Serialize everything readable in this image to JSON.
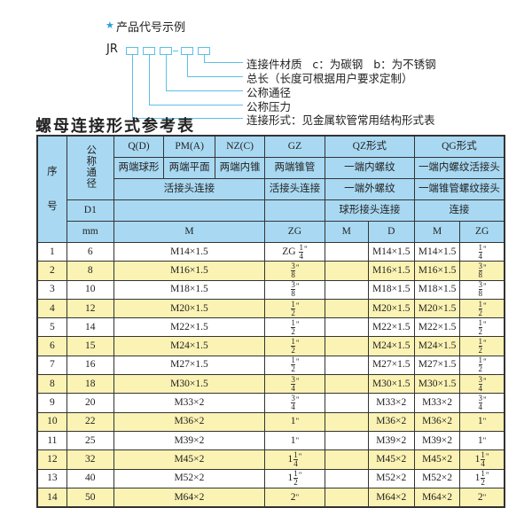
{
  "diagram": {
    "title": "产品代号示例",
    "star_icon": "star",
    "code": "JR",
    "annotations": [
      "连接件材质   c：为碳钢   b：为不锈钢",
      "总长（长度可根据用户要求定制）",
      "公称通径",
      "公称压力",
      "连接形式：见金属软管常用结构形式表"
    ]
  },
  "table_title": "螺母连接形式参考表",
  "colors": {
    "header_bg": "#a9d9f2",
    "alt_row_bg": "#fbf3b4",
    "accent": "#5bc0e8"
  },
  "header": {
    "seq": [
      "序",
      "号"
    ],
    "nominal_diameter": "公称通径",
    "d1": "D1",
    "mm": "mm",
    "row1": [
      "Q(D)",
      "PM(A)",
      "NZ(C)",
      "GZ",
      "QZ形式",
      "QG形式"
    ],
    "row2": [
      "两端球形",
      "两端平面",
      "两端内锥",
      "两端锥管",
      "一端内螺纹",
      "一端内螺纹活接头"
    ],
    "row3": [
      "活接头连接",
      "活接头连接",
      "一端外螺纹",
      "一端锥管螺纹接头"
    ],
    "row4": [
      "",
      "",
      "球形接头连接",
      "连接"
    ],
    "row5": [
      "M",
      "ZG",
      "M",
      "D",
      "M",
      "ZG"
    ]
  },
  "rows": [
    {
      "no": "1",
      "d1": "6",
      "m": "M14×1.5",
      "zg": {
        "prefix": "ZG",
        "whole": "",
        "num": "1",
        "den": "4"
      },
      "qz_m": "",
      "qz_d": "M14×1.5",
      "qg_m": "M14×1.5",
      "qg_zg": {
        "whole": "",
        "num": "1",
        "den": "4"
      }
    },
    {
      "no": "2",
      "d1": "8",
      "m": "M16×1.5",
      "zg": {
        "whole": "",
        "num": "3",
        "den": "8"
      },
      "qz_m": "",
      "qz_d": "M16×1.5",
      "qg_m": "M16×1.5",
      "qg_zg": {
        "whole": "",
        "num": "3",
        "den": "8"
      }
    },
    {
      "no": "3",
      "d1": "10",
      "m": "M18×1.5",
      "zg": {
        "whole": "",
        "num": "3",
        "den": "8"
      },
      "qz_m": "",
      "qz_d": "M18×1.5",
      "qg_m": "M18×1.5",
      "qg_zg": {
        "whole": "",
        "num": "3",
        "den": "8"
      }
    },
    {
      "no": "4",
      "d1": "12",
      "m": "M20×1.5",
      "zg": {
        "whole": "",
        "num": "1",
        "den": "2"
      },
      "qz_m": "",
      "qz_d": "M20×1.5",
      "qg_m": "M20×1.5",
      "qg_zg": {
        "whole": "",
        "num": "1",
        "den": "2"
      }
    },
    {
      "no": "5",
      "d1": "14",
      "m": "M22×1.5",
      "zg": {
        "whole": "",
        "num": "1",
        "den": "2"
      },
      "qz_m": "",
      "qz_d": "M22×1.5",
      "qg_m": "M22×1.5",
      "qg_zg": {
        "whole": "",
        "num": "1",
        "den": "2"
      }
    },
    {
      "no": "6",
      "d1": "15",
      "m": "M24×1.5",
      "zg": {
        "whole": "",
        "num": "1",
        "den": "2"
      },
      "qz_m": "",
      "qz_d": "M24×1.5",
      "qg_m": "M24×1.5",
      "qg_zg": {
        "whole": "",
        "num": "1",
        "den": "2"
      }
    },
    {
      "no": "7",
      "d1": "16",
      "m": "M27×1.5",
      "zg": {
        "whole": "",
        "num": "1",
        "den": "2"
      },
      "qz_m": "",
      "qz_d": "M27×1.5",
      "qg_m": "M27×1.5",
      "qg_zg": {
        "whole": "",
        "num": "1",
        "den": "2"
      }
    },
    {
      "no": "8",
      "d1": "18",
      "m": "M30×1.5",
      "zg": {
        "whole": "",
        "num": "3",
        "den": "4"
      },
      "qz_m": "",
      "qz_d": "M30×1.5",
      "qg_m": "M30×1.5",
      "qg_zg": {
        "whole": "",
        "num": "3",
        "den": "4"
      }
    },
    {
      "no": "9",
      "d1": "20",
      "m": "M33×2",
      "zg": {
        "whole": "",
        "num": "3",
        "den": "4"
      },
      "qz_m": "",
      "qz_d": "M33×2",
      "qg_m": "M33×2",
      "qg_zg": {
        "whole": "",
        "num": "3",
        "den": "4"
      }
    },
    {
      "no": "10",
      "d1": "22",
      "m": "M36×2",
      "zg": {
        "whole": "1",
        "num": "",
        "den": ""
      },
      "qz_m": "",
      "qz_d": "M36×2",
      "qg_m": "M36×2",
      "qg_zg": {
        "whole": "1",
        "num": "",
        "den": ""
      }
    },
    {
      "no": "11",
      "d1": "25",
      "m": "M39×2",
      "zg": {
        "whole": "1",
        "num": "",
        "den": ""
      },
      "qz_m": "",
      "qz_d": "M39×2",
      "qg_m": "M39×2",
      "qg_zg": {
        "whole": "1",
        "num": "",
        "den": ""
      }
    },
    {
      "no": "12",
      "d1": "32",
      "m": "M45×2",
      "zg": {
        "whole": "1",
        "num": "1",
        "den": "4"
      },
      "qz_m": "",
      "qz_d": "M45×2",
      "qg_m": "M45×2",
      "qg_zg": {
        "whole": "1",
        "num": "1",
        "den": "4"
      }
    },
    {
      "no": "13",
      "d1": "40",
      "m": "M52×2",
      "zg": {
        "whole": "1",
        "num": "1",
        "den": "2"
      },
      "qz_m": "",
      "qz_d": "M52×2",
      "qg_m": "M52×2",
      "qg_zg": {
        "whole": "1",
        "num": "1",
        "den": "2"
      }
    },
    {
      "no": "14",
      "d1": "50",
      "m": "M64×2",
      "zg": {
        "whole": "2",
        "num": "",
        "den": ""
      },
      "qz_m": "",
      "qz_d": "M64×2",
      "qg_m": "M64×2",
      "qg_zg": {
        "whole": "2",
        "num": "",
        "den": ""
      }
    }
  ]
}
